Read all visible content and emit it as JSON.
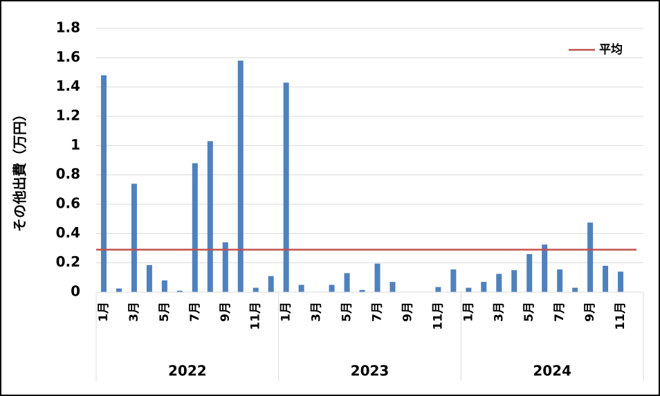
{
  "chart_data": {
    "type": "bar",
    "y_label": "その他出費（万円）",
    "categories": [
      "1月",
      null,
      "3月",
      null,
      "5月",
      null,
      "7月",
      null,
      "9月",
      null,
      "11月",
      null,
      "1月",
      null,
      "3月",
      null,
      "5月",
      null,
      "7月",
      null,
      "9月",
      null,
      "11月",
      null,
      "1月",
      null,
      "3月",
      null,
      "5月",
      null,
      "7月",
      null,
      "9月",
      null,
      "11月",
      null
    ],
    "groups": [
      "2022",
      "2023",
      "2024"
    ],
    "values": [
      1.48,
      0.025,
      0.74,
      0.185,
      0.08,
      0.01,
      0.88,
      1.03,
      0.34,
      1.58,
      0.03,
      0.11,
      1.43,
      0.05,
      0,
      0.05,
      0.13,
      0.015,
      0.195,
      0.07,
      0,
      0,
      0.035,
      0.155,
      0.03,
      0.07,
      0.125,
      0.15,
      0.26,
      0.325,
      0.155,
      0.03,
      0.475,
      0.18,
      0.14,
      null
    ],
    "color": "#4f81bd",
    "average": {
      "name": "平均",
      "value": 0.29,
      "color": "#c0504d"
    },
    "ylim": [
      0,
      1.8
    ],
    "yticks": [
      0,
      0.2,
      0.4,
      0.6,
      0.8,
      1,
      1.2,
      1.4,
      1.6,
      1.8
    ],
    "grid": true,
    "legend": "top-right"
  }
}
